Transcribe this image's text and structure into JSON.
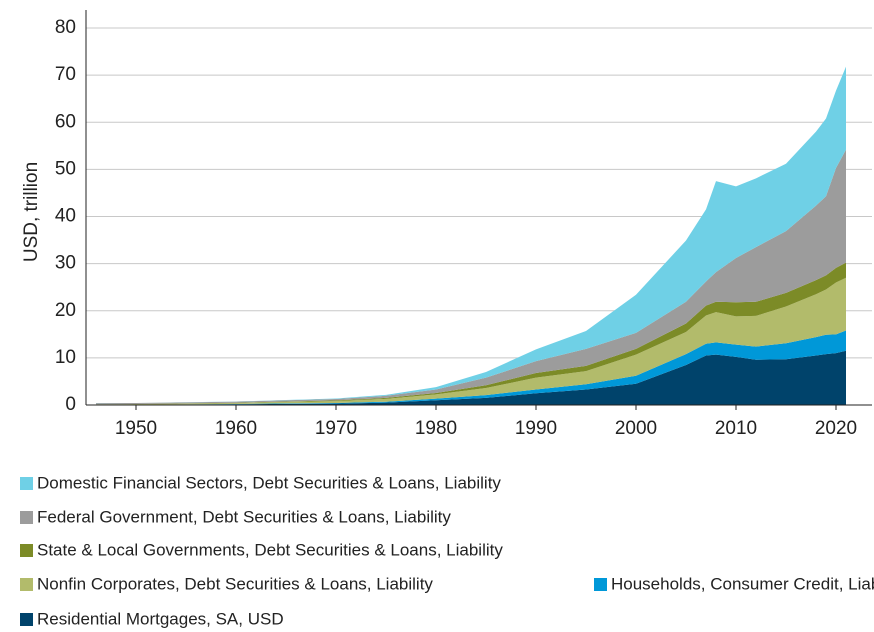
{
  "chart_data": {
    "type": "stacked_area",
    "y_label": "USD, trillion",
    "x": [
      1946,
      1950,
      1955,
      1960,
      1965,
      1970,
      1975,
      1980,
      1985,
      1990,
      1995,
      2000,
      2005,
      2007,
      2008,
      2010,
      2012,
      2015,
      2018,
      2019,
      2020,
      2021
    ],
    "xlim": [
      1945,
      2023.6
    ],
    "xticks": [
      1950,
      1960,
      1970,
      1980,
      1990,
      2000,
      2010,
      2020
    ],
    "ylim": [
      0,
      80
    ],
    "yticks": [
      0,
      10,
      20,
      30,
      40,
      50,
      60,
      70,
      80
    ],
    "grid": true,
    "series": [
      {
        "name": "Residential Mortgages, SA, USD",
        "color": "#00436b",
        "values": [
          0.03,
          0.05,
          0.1,
          0.15,
          0.25,
          0.3,
          0.5,
          1.0,
          1.5,
          2.5,
          3.3,
          4.5,
          8.5,
          10.5,
          10.7,
          10.2,
          9.6,
          9.7,
          10.5,
          10.8,
          11.0,
          11.5
        ]
      },
      {
        "name": "Households, Consumer Credit, Liability",
        "color": "#0098d8",
        "values": [
          0.01,
          0.02,
          0.04,
          0.06,
          0.1,
          0.13,
          0.2,
          0.35,
          0.6,
          0.8,
          1.1,
          1.7,
          2.3,
          2.5,
          2.6,
          2.6,
          2.8,
          3.4,
          3.9,
          4.1,
          4.0,
          4.3
        ]
      },
      {
        "name": "Nonfin Corporates, Debt Securities & Loans, Liability",
        "color": "#b2bb6b",
        "values": [
          0.1,
          0.1,
          0.15,
          0.2,
          0.3,
          0.4,
          0.6,
          0.9,
          1.5,
          2.5,
          2.8,
          4.5,
          4.7,
          6.0,
          6.4,
          6.0,
          6.5,
          7.8,
          9.1,
          9.6,
          11.0,
          11.2
        ]
      },
      {
        "name": "State & Local Governments, Debt Securities & Loans, Liability",
        "color": "#7c8b27",
        "values": [
          0.02,
          0.03,
          0.05,
          0.07,
          0.1,
          0.15,
          0.2,
          0.3,
          0.6,
          1.0,
          1.1,
          1.2,
          1.8,
          2.1,
          2.2,
          3.0,
          3.0,
          2.9,
          3.0,
          3.0,
          3.1,
          3.2
        ]
      },
      {
        "name": "Federal Government, Debt Securities & Loans, Liability",
        "color": "#9c9c9c",
        "values": [
          0.25,
          0.22,
          0.23,
          0.24,
          0.26,
          0.3,
          0.45,
          0.75,
          1.6,
          2.5,
          3.6,
          3.4,
          4.6,
          5.1,
          6.3,
          9.4,
          11.6,
          13.1,
          15.8,
          16.8,
          21.2,
          24.0
        ]
      },
      {
        "name": "Domestic Financial Sectors, Debt Securities & Loans, Liability",
        "color": "#6fd0e6",
        "values": [
          0.01,
          0.01,
          0.02,
          0.03,
          0.05,
          0.1,
          0.2,
          0.5,
          1.2,
          2.5,
          3.8,
          8.1,
          13.0,
          15.3,
          19.3,
          15.2,
          14.6,
          14.3,
          15.7,
          16.5,
          16.4,
          17.6
        ]
      }
    ]
  }
}
